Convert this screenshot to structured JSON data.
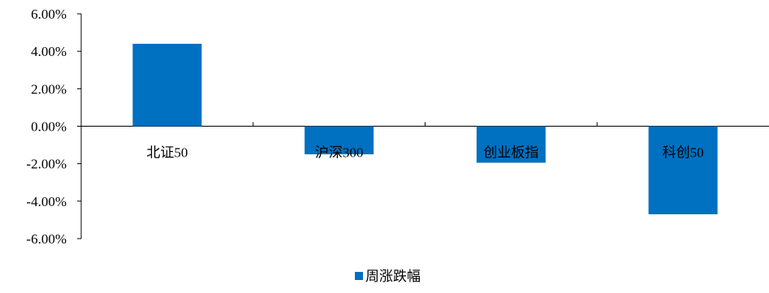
{
  "chart_data": {
    "type": "bar",
    "categories": [
      "北证50",
      "沪深300",
      "创业板指",
      "科创50"
    ],
    "series": [
      {
        "name": "周涨跌幅",
        "values": [
          4.4,
          -1.5,
          -1.95,
          -4.7
        ],
        "color": "#0070C0"
      }
    ],
    "ylim": [
      -6,
      6
    ],
    "yticks": [
      "6.00%",
      "4.00%",
      "2.00%",
      "0.00%",
      "-2.00%",
      "-4.00%",
      "-6.00%"
    ],
    "ytick_values": [
      6,
      4,
      2,
      0,
      -2,
      -4,
      -6
    ],
    "grid": false,
    "legend_position": "bottom-center",
    "title": "",
    "xlabel": "",
    "ylabel": ""
  }
}
